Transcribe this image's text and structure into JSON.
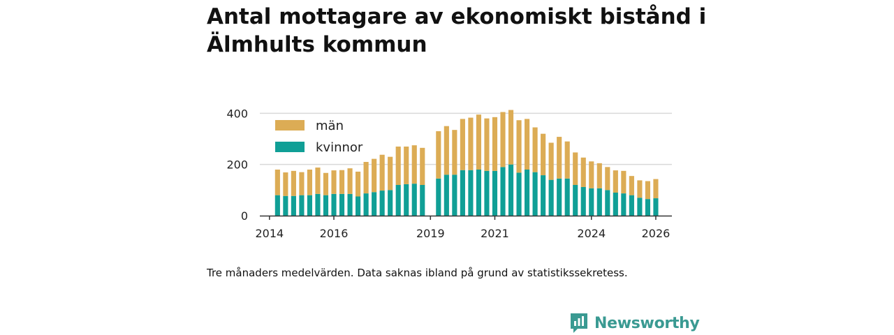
{
  "title": "Antal mottagare av ekonomiskt bistånd i Älmhults kommun",
  "caption": "Tre månaders medelvärden. Data saknas ibland på grund av statistikssekretess.",
  "brand": {
    "name": "Newsworthy",
    "icon": "newsworthy-logo-icon",
    "color": "#3a9a92"
  },
  "colors": {
    "kvinnor": "#109f96",
    "man": "#dcac55",
    "grid": "#d9d9d9",
    "axis": "#333333"
  },
  "chart_data": {
    "type": "bar",
    "stacked": true,
    "x_start": 2014.25,
    "x_step": 0.25,
    "xlim": [
      2013.7,
      2026.5
    ],
    "ylim": [
      0,
      420
    ],
    "yticks": [
      0,
      200,
      400
    ],
    "xticks": [
      2014,
      2016,
      2019,
      2021,
      2024,
      2026
    ],
    "legend": {
      "position": "top-left",
      "entries": [
        "män",
        "kvinnor"
      ]
    },
    "series": [
      {
        "name": "kvinnor",
        "values": [
          80,
          77,
          77,
          80,
          80,
          85,
          80,
          85,
          85,
          85,
          75,
          87,
          92,
          98,
          100,
          120,
          123,
          125,
          120,
          null,
          145,
          160,
          160,
          178,
          178,
          180,
          175,
          175,
          190,
          200,
          168,
          180,
          170,
          158,
          140,
          145,
          145,
          120,
          112,
          107,
          107,
          100,
          90,
          87,
          80,
          70,
          65,
          68
        ]
      },
      {
        "name": "män",
        "values": [
          100,
          92,
          98,
          90,
          100,
          103,
          87,
          92,
          93,
          100,
          97,
          123,
          130,
          140,
          130,
          150,
          147,
          150,
          145,
          null,
          185,
          190,
          175,
          200,
          205,
          215,
          205,
          210,
          215,
          213,
          205,
          198,
          175,
          162,
          145,
          163,
          145,
          127,
          115,
          105,
          98,
          90,
          87,
          88,
          75,
          68,
          70,
          75
        ]
      }
    ]
  }
}
